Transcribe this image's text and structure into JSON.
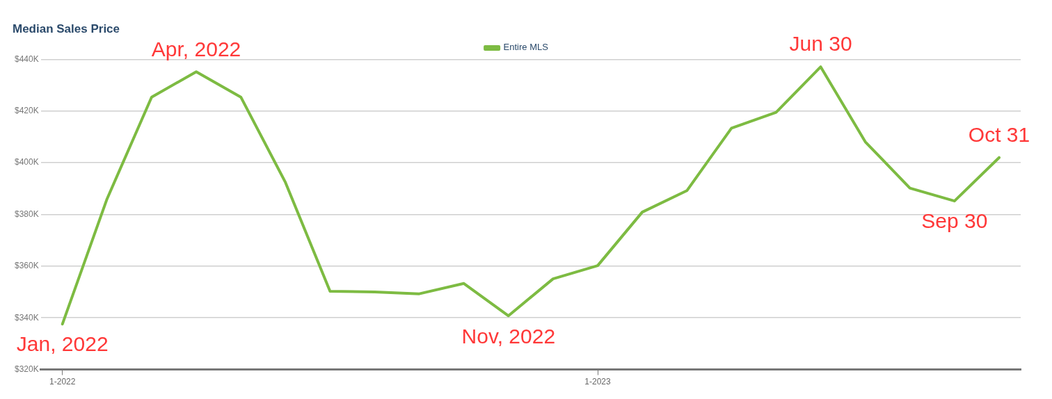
{
  "chart_data": {
    "type": "line",
    "title": "Median Sales Price",
    "x": [
      "2022-01",
      "2022-02",
      "2022-03",
      "2022-04",
      "2022-05",
      "2022-06",
      "2022-07",
      "2022-08",
      "2022-09",
      "2022-10",
      "2022-11",
      "2022-12",
      "2023-01",
      "2023-02",
      "2023-03",
      "2023-04",
      "2023-05",
      "2023-06",
      "2023-07",
      "2023-08",
      "2023-09",
      "2023-10"
    ],
    "series": [
      {
        "name": "Entire MLS",
        "color": "#7dbb42",
        "values": [
          337.6,
          386,
          425.4,
          435.2,
          425.4,
          392.4,
          350.3,
          350,
          349.3,
          353.3,
          340.8,
          355.1,
          360.2,
          380.9,
          389.2,
          413.4,
          419.5,
          437.1,
          408.1,
          390.2,
          385.2,
          402
        ]
      }
    ],
    "xlim": [
      "2021-12-17",
      "2023-10-16"
    ],
    "xticks": [
      {
        "value": "2022-01",
        "label": "1-2022"
      },
      {
        "value": "2023-01",
        "label": "1-2023"
      }
    ],
    "ylim": [
      320,
      440
    ],
    "yticks": [
      {
        "value": 320,
        "label": "$320K"
      },
      {
        "value": 340,
        "label": "$340K"
      },
      {
        "value": 360,
        "label": "$360K"
      },
      {
        "value": 380,
        "label": "$380K"
      },
      {
        "value": 400,
        "label": "$400K"
      },
      {
        "value": 420,
        "label": "$420K"
      },
      {
        "value": 440,
        "label": "$440K"
      }
    ],
    "grid": "y",
    "legend": "top",
    "marker": "none",
    "line_style": "solid",
    "annotations": [
      {
        "text": "Jan, 2022",
        "x": "2022-01",
        "y": 337.6
      },
      {
        "text": "Apr, 2022",
        "x": "2022-04",
        "y": 435.2
      },
      {
        "text": "Nov, 2022",
        "x": "2022-11",
        "y": 340.8
      },
      {
        "text": "Jun 30",
        "x": "2023-06",
        "y": 437.1
      },
      {
        "text": "Sep 30",
        "x": "2023-09",
        "y": 385.2
      },
      {
        "text": "Oct 31",
        "x": "2023-10",
        "y": 402
      }
    ]
  }
}
